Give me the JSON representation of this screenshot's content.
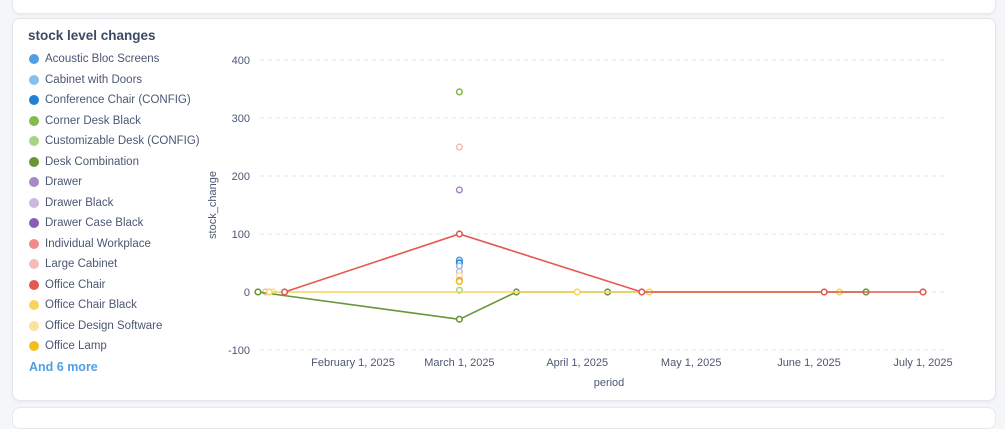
{
  "card": {
    "title": "stock level changes"
  },
  "legend": {
    "items": [
      {
        "label": "Acoustic Bloc Screens",
        "color": "#509ee3"
      },
      {
        "label": "Cabinet with Doors",
        "color": "#88bfeb"
      },
      {
        "label": "Conference Chair (CONFIG)",
        "color": "#227fd2"
      },
      {
        "label": "Corner Desk Black",
        "color": "#84bb4c"
      },
      {
        "label": "Customizable Desk (CONFIG)",
        "color": "#a8d48a"
      },
      {
        "label": "Desk Combination",
        "color": "#689636"
      },
      {
        "label": "Drawer",
        "color": "#a989c5"
      },
      {
        "label": "Drawer Black",
        "color": "#cbb8df"
      },
      {
        "label": "Drawer Case Black",
        "color": "#8a5eb0"
      },
      {
        "label": "Individual Workplace",
        "color": "#ef8c8c"
      },
      {
        "label": "Large Cabinet",
        "color": "#f5baba"
      },
      {
        "label": "Office Chair",
        "color": "#e35850"
      },
      {
        "label": "Office Chair Black",
        "color": "#f9d45c"
      },
      {
        "label": "Office Design Software",
        "color": "#fbe39b"
      },
      {
        "label": "Office Lamp",
        "color": "#f2c01c"
      }
    ],
    "more_label": "And 6 more"
  },
  "chart_data": {
    "type": "line",
    "title": "stock level changes",
    "xlabel": "period",
    "ylabel": "stock_change",
    "ylim": [
      -100,
      400
    ],
    "yticks": [
      -100,
      0,
      100,
      200,
      300,
      400
    ],
    "xticks": [
      "February 1, 2025",
      "March 1, 2025",
      "April 1, 2025",
      "May 1, 2025",
      "June 1, 2025",
      "July 1, 2025"
    ],
    "grid": true,
    "legend_position": "left",
    "series": [
      {
        "name": "Corner Desk Black",
        "color": "#84bb4c",
        "line": false,
        "points": [
          [
            "2025-03-01",
            345
          ]
        ]
      },
      {
        "name": "Large Cabinet",
        "color": "#f5baba",
        "line": false,
        "points": [
          [
            "2025-01-09",
            0
          ],
          [
            "2025-03-01",
            250
          ]
        ]
      },
      {
        "name": "Drawer",
        "color": "#a989c5",
        "line": false,
        "points": [
          [
            "2025-03-01",
            176
          ]
        ]
      },
      {
        "name": "Acoustic Bloc Screens",
        "color": "#509ee3",
        "line": false,
        "points": [
          [
            "2025-03-01",
            55
          ]
        ]
      },
      {
        "name": "Conference Chair (CONFIG)",
        "color": "#227fd2",
        "line": false,
        "points": [
          [
            "2025-03-01",
            50
          ]
        ]
      },
      {
        "name": "Cabinet with Doors",
        "color": "#88bfeb",
        "line": false,
        "points": [
          [
            "2025-03-01",
            45
          ]
        ]
      },
      {
        "name": "Drawer Black",
        "color": "#cbb8df",
        "line": false,
        "points": [
          [
            "2025-03-01",
            35
          ]
        ]
      },
      {
        "name": "Office Design Software",
        "color": "#fbe39b",
        "line": false,
        "points": [
          [
            "2025-01-11",
            0
          ],
          [
            "2025-03-01",
            28
          ]
        ]
      },
      {
        "name": "Individual Workplace",
        "color": "#ef8c8c",
        "line": false,
        "points": [
          [
            "2025-03-01",
            20
          ]
        ]
      },
      {
        "name": "Office Lamp",
        "color": "#f2c01c",
        "line": false,
        "points": [
          [
            "2025-03-01",
            18
          ]
        ]
      },
      {
        "name": "Customizable Desk (CONFIG)",
        "color": "#a8d48a",
        "line": false,
        "points": [
          [
            "2025-03-01",
            3
          ]
        ]
      },
      {
        "name": "Desk Combination",
        "color": "#689636",
        "line": true,
        "points": [
          [
            "2025-01-07",
            0
          ],
          [
            "2025-03-01",
            -47
          ],
          [
            "2025-03-16",
            0
          ],
          [
            "2025-04-09",
            0
          ],
          [
            "2025-06-16",
            0
          ]
        ]
      },
      {
        "name": "Office Chair Black",
        "color": "#f9d45c",
        "line": true,
        "points": [
          [
            "2025-01-10",
            0
          ],
          [
            "2025-04-01",
            0
          ],
          [
            "2025-04-20",
            0
          ],
          [
            "2025-06-09",
            0
          ]
        ]
      },
      {
        "name": "Office Chair",
        "color": "#e35850",
        "line": true,
        "points": [
          [
            "2025-01-14",
            0
          ],
          [
            "2025-03-01",
            100
          ],
          [
            "2025-04-18",
            0
          ],
          [
            "2025-06-05",
            0
          ],
          [
            "2025-07-01",
            0
          ]
        ]
      }
    ]
  }
}
